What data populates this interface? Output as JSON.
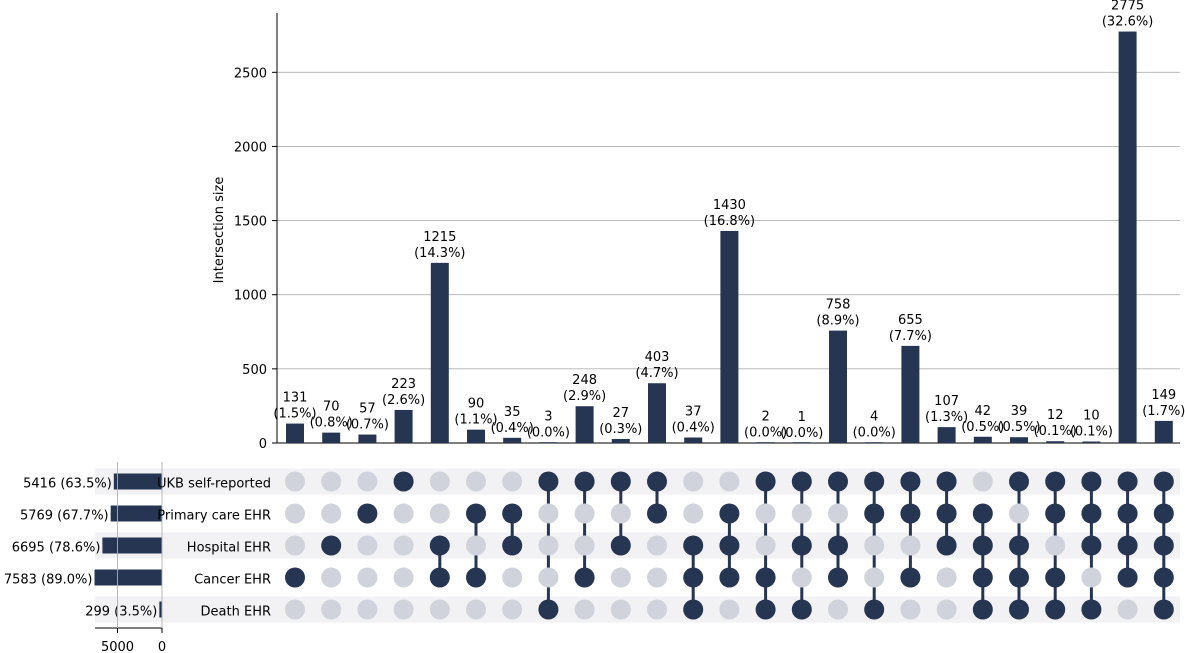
{
  "chart_data": {
    "type": "upset",
    "ylabel": "Intersection size",
    "ylim": [
      0,
      2900
    ],
    "yticks": [
      0,
      500,
      1000,
      1500,
      2000,
      2500
    ],
    "grid": true,
    "colors": {
      "bar": "#263552",
      "dot_active": "#263552",
      "dot_inactive": "#d0d3db",
      "row_band": "#f2f2f5",
      "grid": "#b0b0b0"
    },
    "sets": [
      {
        "name": "UKB self-reported",
        "size": 5416,
        "size_label": "5416 (63.5%)"
      },
      {
        "name": "Primary care EHR",
        "size": 5769,
        "size_label": "5769 (67.7%)"
      },
      {
        "name": "Hospital EHR",
        "size": 6695,
        "size_label": "6695 (78.6%)"
      },
      {
        "name": "Cancer EHR",
        "size": 7583,
        "size_label": "7583 (89.0%)"
      },
      {
        "name": "Death EHR",
        "size": 299,
        "size_label": "299 (3.5%)"
      }
    ],
    "set_size_ticks": [
      5000,
      0
    ],
    "set_size_xlim": [
      0,
      8500
    ],
    "intersections": [
      {
        "value": 131,
        "pct": "(1.5%)",
        "members": [
          3
        ]
      },
      {
        "value": 70,
        "pct": "(0.8%)",
        "members": [
          2
        ]
      },
      {
        "value": 57,
        "pct": "(0.7%)",
        "members": [
          1
        ]
      },
      {
        "value": 223,
        "pct": "(2.6%)",
        "members": [
          0
        ]
      },
      {
        "value": 1215,
        "pct": "(14.3%)",
        "members": [
          2,
          3
        ]
      },
      {
        "value": 90,
        "pct": "(1.1%)",
        "members": [
          1,
          3
        ]
      },
      {
        "value": 35,
        "pct": "(0.4%)",
        "members": [
          1,
          2
        ]
      },
      {
        "value": 3,
        "pct": "(0.0%)",
        "members": [
          0,
          4
        ]
      },
      {
        "value": 248,
        "pct": "(2.9%)",
        "members": [
          0,
          3
        ]
      },
      {
        "value": 27,
        "pct": "(0.3%)",
        "members": [
          0,
          2
        ]
      },
      {
        "value": 403,
        "pct": "(4.7%)",
        "members": [
          0,
          1
        ]
      },
      {
        "value": 37,
        "pct": "(0.4%)",
        "members": [
          2,
          3,
          4
        ]
      },
      {
        "value": 1430,
        "pct": "(16.8%)",
        "members": [
          1,
          2,
          3
        ]
      },
      {
        "value": 2,
        "pct": "(0.0%)",
        "members": [
          0,
          3,
          4
        ]
      },
      {
        "value": 1,
        "pct": "(0.0%)",
        "members": [
          0,
          2,
          4
        ]
      },
      {
        "value": 758,
        "pct": "(8.9%)",
        "members": [
          0,
          2,
          3
        ]
      },
      {
        "value": 4,
        "pct": "(0.0%)",
        "members": [
          0,
          1,
          4
        ]
      },
      {
        "value": 655,
        "pct": "(7.7%)",
        "members": [
          0,
          1,
          3
        ]
      },
      {
        "value": 107,
        "pct": "(1.3%)",
        "members": [
          0,
          1,
          2
        ]
      },
      {
        "value": 42,
        "pct": "(0.5%)",
        "members": [
          1,
          2,
          3,
          4
        ]
      },
      {
        "value": 39,
        "pct": "(0.5%)",
        "members": [
          0,
          2,
          3,
          4
        ]
      },
      {
        "value": 12,
        "pct": "(0.1%)",
        "members": [
          0,
          1,
          3,
          4
        ]
      },
      {
        "value": 10,
        "pct": "(0.1%)",
        "members": [
          0,
          1,
          2,
          4
        ]
      },
      {
        "value": 2775,
        "pct": "(32.6%)",
        "members": [
          0,
          1,
          2,
          3
        ]
      },
      {
        "value": 149,
        "pct": "(1.7%)",
        "members": [
          0,
          1,
          2,
          3,
          4
        ]
      }
    ]
  }
}
